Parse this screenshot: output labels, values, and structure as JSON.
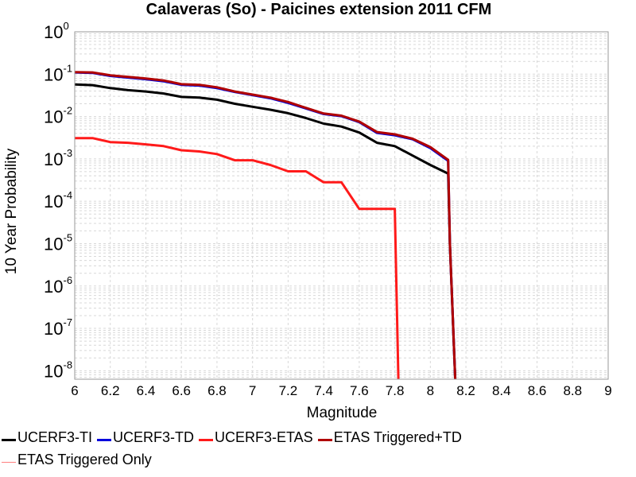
{
  "chart_data": {
    "type": "line",
    "title": "Calaveras (So) - Paicines extension 2011 CFM",
    "xlabel": "Magnitude",
    "ylabel": "10 Year Probability",
    "xlim": [
      6,
      9
    ],
    "ylim_log10": [
      -8.2,
      0
    ],
    "yscale": "log",
    "grid": true,
    "legend_position": "bottom",
    "x_ticks": [
      "6",
      "6.2",
      "6.4",
      "6.6",
      "6.8",
      "7",
      "7.2",
      "7.4",
      "7.6",
      "7.8",
      "8",
      "8.2",
      "8.4",
      "8.6",
      "8.8",
      "9"
    ],
    "y_ticks": [
      {
        "base": "10",
        "exp": "0"
      },
      {
        "base": "10",
        "exp": "-1"
      },
      {
        "base": "10",
        "exp": "-2"
      },
      {
        "base": "10",
        "exp": "-3"
      },
      {
        "base": "10",
        "exp": "-4"
      },
      {
        "base": "10",
        "exp": "-5"
      },
      {
        "base": "10",
        "exp": "-6"
      },
      {
        "base": "10",
        "exp": "-7"
      },
      {
        "base": "10",
        "exp": "-8"
      }
    ],
    "series": [
      {
        "name": "UCERF3-TI",
        "color": "#000000",
        "width": 3,
        "x": [
          6.0,
          6.1,
          6.2,
          6.3,
          6.4,
          6.5,
          6.6,
          6.7,
          6.8,
          6.9,
          7.0,
          7.1,
          7.2,
          7.3,
          7.4,
          7.5,
          7.6,
          7.7,
          7.8,
          7.9,
          8.0,
          8.1,
          8.11,
          8.14
        ],
        "y": [
          0.057,
          0.055,
          0.047,
          0.042,
          0.039,
          0.035,
          0.029,
          0.028,
          0.025,
          0.02,
          0.017,
          0.0145,
          0.012,
          0.0092,
          0.0068,
          0.0058,
          0.0042,
          0.0024,
          0.002,
          0.0012,
          0.00072,
          0.00045,
          1e-05,
          1e-09
        ]
      },
      {
        "name": "UCERF3-TD",
        "color": "#0000dd",
        "width": 3,
        "x": [
          6.0,
          6.1,
          6.2,
          6.3,
          6.4,
          6.5,
          6.6,
          6.7,
          6.8,
          6.9,
          7.0,
          7.1,
          7.2,
          7.3,
          7.4,
          7.5,
          7.6,
          7.7,
          7.8,
          7.9,
          8.0,
          8.1,
          8.11,
          8.14
        ],
        "y": [
          0.11,
          0.107,
          0.091,
          0.083,
          0.076,
          0.068,
          0.056,
          0.054,
          0.047,
          0.038,
          0.032,
          0.027,
          0.021,
          0.0155,
          0.0115,
          0.0102,
          0.0074,
          0.0041,
          0.0036,
          0.0029,
          0.0018,
          0.0009,
          1e-05,
          1e-09
        ]
      },
      {
        "name": "UCERF3-ETAS",
        "color": "#ff1a1a",
        "width": 3,
        "x": [
          6.0,
          6.1,
          6.2,
          6.3,
          6.4,
          6.5,
          6.6,
          6.7,
          6.8,
          6.9,
          7.0,
          7.1,
          7.2,
          7.3,
          7.4,
          7.5,
          7.6,
          7.7,
          7.8,
          7.82
        ],
        "y": [
          0.0031,
          0.0031,
          0.0025,
          0.0024,
          0.0022,
          0.002,
          0.0016,
          0.0015,
          0.0013,
          0.00093,
          0.00093,
          0.00072,
          0.00051,
          0.00051,
          0.00028,
          0.00028,
          6.6e-05,
          6.6e-05,
          6.6e-05,
          1e-09
        ]
      },
      {
        "name": "ETAS Triggered+TD",
        "color": "#b00000",
        "width": 3,
        "x": [
          6.0,
          6.1,
          6.2,
          6.3,
          6.4,
          6.5,
          6.6,
          6.7,
          6.8,
          6.9,
          7.0,
          7.1,
          7.2,
          7.3,
          7.4,
          7.5,
          7.6,
          7.7,
          7.8,
          7.9,
          8.0,
          8.1,
          8.11,
          8.14
        ],
        "y": [
          0.112,
          0.11,
          0.094,
          0.086,
          0.079,
          0.071,
          0.058,
          0.056,
          0.049,
          0.039,
          0.033,
          0.028,
          0.022,
          0.016,
          0.0118,
          0.0105,
          0.0076,
          0.0043,
          0.0038,
          0.003,
          0.0019,
          0.00095,
          1e-05,
          1e-09
        ]
      },
      {
        "name": "ETAS Triggered Only",
        "color": "#ff7f7f",
        "width": 1.5,
        "x": [],
        "y": []
      }
    ]
  }
}
